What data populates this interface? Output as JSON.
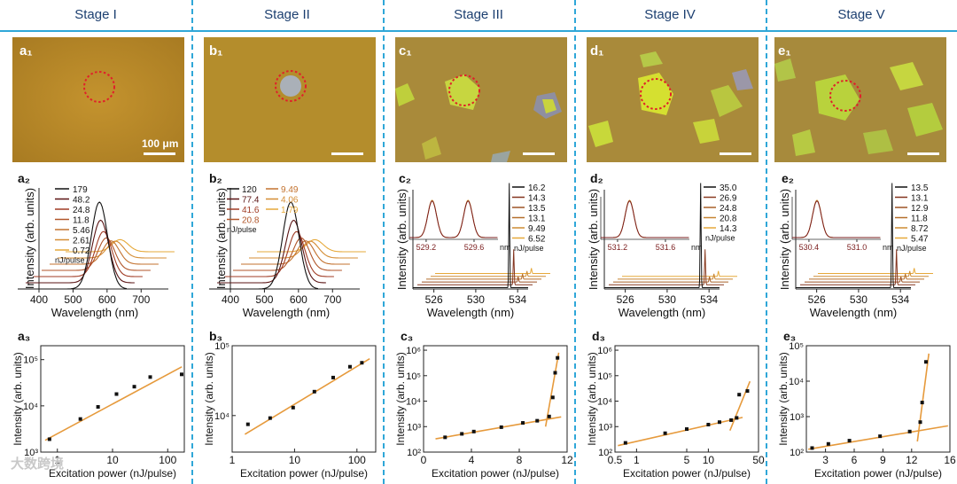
{
  "stages": [
    "Stage I",
    "Stage II",
    "Stage III",
    "Stage IV",
    "Stage V"
  ],
  "scale_bar_label": "100 μm",
  "watermark": "大数跨境",
  "colors": {
    "divider": "#2fa7d8",
    "fit": "#e69a3c",
    "marker": "#111111"
  },
  "chart_data": [
    {
      "id": "a2",
      "panel": "a",
      "index": "2",
      "type": "line",
      "subtype": "waterfall-spectra",
      "xlabel": "Wavelength (nm)",
      "ylabel": "Intensity (arb. units)",
      "xticks": [
        "400",
        "500",
        "600",
        "700"
      ],
      "xlim": [
        400,
        780
      ],
      "peak_nm": [
        640,
        620,
        605,
        590,
        580,
        570,
        560
      ],
      "legend_title": "nJ/pulse",
      "series": [
        "179",
        "48.2",
        "24.8",
        "11.8",
        "5.46",
        "2.61",
        "0.72"
      ]
    },
    {
      "id": "b2",
      "panel": "b",
      "index": "2",
      "type": "line",
      "subtype": "waterfall-spectra",
      "xlabel": "Wavelength (nm)",
      "ylabel": "Intensity (arb. units)",
      "xticks": [
        "400",
        "500",
        "600",
        "700"
      ],
      "xlim": [
        400,
        780
      ],
      "peak_nm": [
        640,
        625,
        610,
        600,
        590,
        580,
        570
      ],
      "legend_title": "nJ/pulse",
      "series": [
        "120",
        "77.4",
        "41.6",
        "20.8",
        "9.49",
        "4.06",
        "1.79"
      ]
    },
    {
      "id": "c2",
      "panel": "c",
      "index": "2",
      "type": "line",
      "subtype": "lasing-spectra",
      "xlabel": "Wavelength (nm)",
      "ylabel": "Intensity (arb. units)",
      "xticks": [
        "526",
        "530",
        "534"
      ],
      "xlim": [
        524,
        535
      ],
      "legend_title": "nJ/pulse",
      "series": [
        "16.2",
        "14.3",
        "13.5",
        "13.1",
        "9.49",
        "6.52"
      ],
      "inset": {
        "xticks": [
          "529.2",
          "529.6"
        ],
        "unit": "nm",
        "peaks": [
          529.25,
          529.55
        ]
      }
    },
    {
      "id": "d2",
      "panel": "d",
      "index": "2",
      "type": "line",
      "subtype": "lasing-spectra",
      "xlabel": "Wavelength (nm)",
      "ylabel": "Intensity (arb. units)",
      "xticks": [
        "526",
        "530",
        "534"
      ],
      "xlim": [
        524,
        535
      ],
      "legend_title": "nJ/pulse",
      "series": [
        "35.0",
        "26.9",
        "24.8",
        "20.8",
        "14.3"
      ],
      "inset": {
        "xticks": [
          "531.2",
          "531.6"
        ],
        "unit": "nm",
        "peaks": [
          531.3
        ]
      }
    },
    {
      "id": "e2",
      "panel": "e",
      "index": "2",
      "type": "line",
      "subtype": "lasing-spectra",
      "xlabel": "Wavelength (nm)",
      "ylabel": "Intensity (arb. units)",
      "xticks": [
        "526",
        "530",
        "534"
      ],
      "xlim": [
        524,
        535
      ],
      "legend_title": "nJ/pulse",
      "series": [
        "13.5",
        "13.1",
        "12.9",
        "11.8",
        "8.72",
        "5.47"
      ],
      "inset": {
        "xticks": [
          "530.4",
          "531.0"
        ],
        "unit": "nm",
        "peaks": [
          530.5
        ]
      }
    },
    {
      "id": "a3",
      "panel": "a",
      "index": "3",
      "type": "scatter",
      "xscale": "log",
      "yscale": "log",
      "xlabel": "Excitation power (nJ/pulse)",
      "ylabel": "Intensity (arb. units)",
      "xlim": [
        0.5,
        200
      ],
      "ylim": [
        1000,
        200000
      ],
      "xticks": [
        {
          "v": 1,
          "t": "1"
        },
        {
          "v": 10,
          "t": "10"
        },
        {
          "v": 100,
          "t": "100"
        }
      ],
      "yticks": [
        {
          "v": 1000,
          "t": "10³"
        },
        {
          "v": 10000,
          "t": "10⁴"
        },
        {
          "v": 100000,
          "t": "10⁵"
        }
      ],
      "points": [
        [
          0.72,
          1900
        ],
        [
          2.61,
          5200
        ],
        [
          5.46,
          9500
        ],
        [
          11.8,
          18000
        ],
        [
          24.8,
          26000
        ],
        [
          48.2,
          42000
        ],
        [
          179,
          48000
        ]
      ],
      "fits": [
        {
          "x": [
            0.6,
            180
          ],
          "y": [
            1800,
            70000
          ]
        }
      ]
    },
    {
      "id": "b3",
      "panel": "b",
      "index": "3",
      "type": "scatter",
      "xscale": "log",
      "yscale": "log",
      "xlabel": "Excitation power (nJ/pulse)",
      "ylabel": "Intensity (arb. units)",
      "xlim": [
        1,
        200
      ],
      "ylim": [
        3000,
        100000
      ],
      "xticks": [
        {
          "v": 1,
          "t": "1"
        },
        {
          "v": 10,
          "t": "10"
        },
        {
          "v": 100,
          "t": "100"
        }
      ],
      "yticks": [
        {
          "v": 10000,
          "t": "10⁴"
        },
        {
          "v": 100000,
          "t": "10⁵"
        }
      ],
      "points": [
        [
          1.79,
          7500
        ],
        [
          4.06,
          9200
        ],
        [
          9.49,
          13000
        ],
        [
          20.8,
          22000
        ],
        [
          41.6,
          35000
        ],
        [
          77.4,
          50000
        ],
        [
          120,
          57000
        ]
      ],
      "fits": [
        {
          "x": [
            1.6,
            160
          ],
          "y": [
            5400,
            65000
          ]
        }
      ]
    },
    {
      "id": "c3",
      "panel": "c",
      "index": "3",
      "type": "scatter",
      "xscale": "linear",
      "yscale": "log",
      "xlabel": "Excitation power (nJ/pulse)",
      "ylabel": "Intensity (arb. units)",
      "xlim": [
        0,
        12
      ],
      "ylim": [
        100,
        1500000
      ],
      "xticks": [
        {
          "v": 0,
          "t": "0"
        },
        {
          "v": 4,
          "t": "4"
        },
        {
          "v": 8,
          "t": "8"
        },
        {
          "v": 12,
          "t": "12"
        }
      ],
      "yticks": [
        {
          "v": 100,
          "t": "10²"
        },
        {
          "v": 1000,
          "t": "10³"
        },
        {
          "v": 10000,
          "t": "10⁴"
        },
        {
          "v": 100000,
          "t": "10⁵"
        },
        {
          "v": 1000000,
          "t": "10⁶"
        }
      ],
      "points": [
        [
          1.8,
          380
        ],
        [
          3.2,
          520
        ],
        [
          4.2,
          640
        ],
        [
          6.5,
          950
        ],
        [
          8.3,
          1400
        ],
        [
          9.5,
          1700
        ],
        [
          10.5,
          2500
        ],
        [
          10.8,
          14000
        ],
        [
          11.0,
          130000
        ],
        [
          11.2,
          500000
        ]
      ],
      "fits": [
        {
          "x": [
            1.0,
            11.5
          ],
          "y": [
            330,
            2400
          ]
        },
        {
          "x": [
            10.2,
            11.3
          ],
          "y": [
            1000,
            800000
          ]
        }
      ]
    },
    {
      "id": "d3",
      "panel": "d",
      "index": "3",
      "type": "scatter",
      "xscale": "log",
      "yscale": "log",
      "xlabel": "Excitation power (nJ/pulse)",
      "ylabel": "Intensity (arb. units)",
      "xlim": [
        0.5,
        50
      ],
      "ylim": [
        100,
        1500000
      ],
      "xticks": [
        {
          "v": 0.5,
          "t": "0.5"
        },
        {
          "v": 1,
          "t": "1"
        },
        {
          "v": 5,
          "t": "5"
        },
        {
          "v": 10,
          "t": "10"
        },
        {
          "v": 50,
          "t": "50"
        }
      ],
      "yticks": [
        {
          "v": 100,
          "t": "10²"
        },
        {
          "v": 1000,
          "t": "10³"
        },
        {
          "v": 10000,
          "t": "10⁴"
        },
        {
          "v": 100000,
          "t": "10⁵"
        },
        {
          "v": 1000000,
          "t": "10⁶"
        }
      ],
      "points": [
        [
          0.7,
          230
        ],
        [
          2.5,
          550
        ],
        [
          5.0,
          800
        ],
        [
          10,
          1200
        ],
        [
          14.3,
          1500
        ],
        [
          20.8,
          1800
        ],
        [
          24.8,
          2200
        ],
        [
          26.9,
          18000
        ],
        [
          35,
          25000
        ]
      ],
      "fits": [
        {
          "x": [
            0.55,
            30
          ],
          "y": [
            180,
            2300
          ]
        },
        {
          "x": [
            20,
            38
          ],
          "y": [
            700,
            60000
          ]
        }
      ]
    },
    {
      "id": "e3",
      "panel": "e",
      "index": "3",
      "type": "scatter",
      "xscale": "linear",
      "yscale": "log",
      "xlabel": "Excitation power (nJ/pulse)",
      "ylabel": "Intensity (arb. units)",
      "xlim": [
        1,
        16
      ],
      "ylim": [
        100,
        100000
      ],
      "xticks": [
        {
          "v": 3,
          "t": "3"
        },
        {
          "v": 6,
          "t": "6"
        },
        {
          "v": 9,
          "t": "9"
        },
        {
          "v": 12,
          "t": "12"
        },
        {
          "v": 16,
          "t": "16"
        }
      ],
      "yticks": [
        {
          "v": 100,
          "t": "10²"
        },
        {
          "v": 1000,
          "t": "10³"
        },
        {
          "v": 10000,
          "t": "10⁴"
        },
        {
          "v": 100000,
          "t": "10⁵"
        }
      ],
      "points": [
        [
          1.6,
          130
        ],
        [
          3.3,
          170
        ],
        [
          5.5,
          210
        ],
        [
          8.7,
          280
        ],
        [
          11.8,
          380
        ],
        [
          12.9,
          700
        ],
        [
          13.1,
          2500
        ],
        [
          13.5,
          35000
        ]
      ],
      "fits": [
        {
          "x": [
            1.2,
            15.8
          ],
          "y": [
            120,
            550
          ]
        },
        {
          "x": [
            12.6,
            13.8
          ],
          "y": [
            200,
            60000
          ]
        }
      ]
    }
  ]
}
